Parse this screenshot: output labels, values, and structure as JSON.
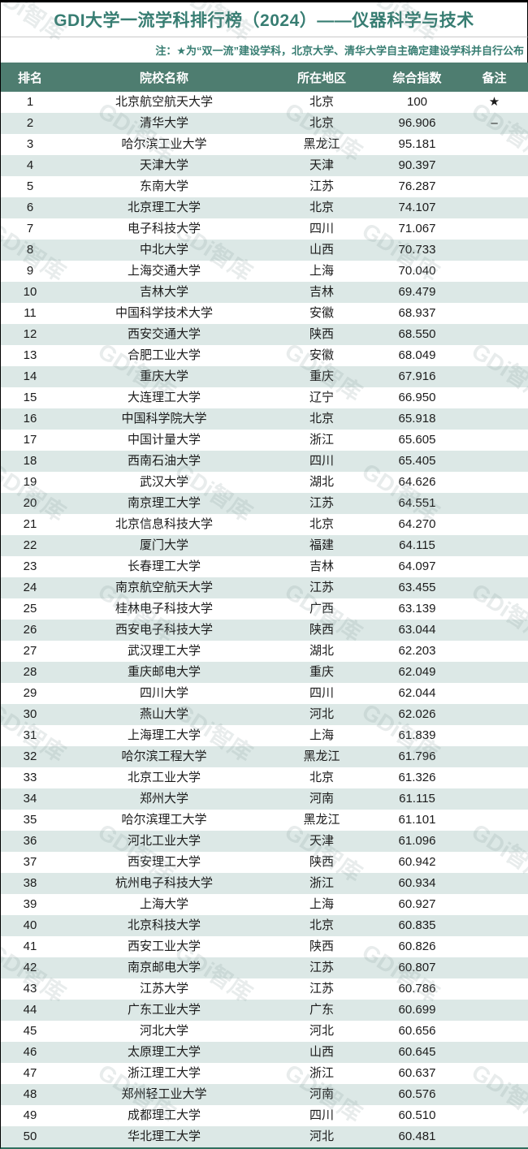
{
  "header": {
    "title": "GDI大学一流学科排行榜（2024）——仪器科学与技术",
    "note": "注：★为“双一流”建设学科，北京大学、清华大学自主确定建设学科并自行公布"
  },
  "watermark": {
    "text": "GDi智库"
  },
  "colors": {
    "accent_teal": "#377d72",
    "header_bg": "#4e7d70",
    "header_text": "#ffffff",
    "stripe": "#dce8e6",
    "bottom_border": "#30705f"
  },
  "table": {
    "columns": [
      "排名",
      "院校名称",
      "所在地区",
      "综合指数",
      "备注"
    ],
    "rows": [
      {
        "rank": "1",
        "name": "北京航空航天大学",
        "region": "北京",
        "index": "100",
        "note": "★"
      },
      {
        "rank": "2",
        "name": "清华大学",
        "region": "北京",
        "index": "96.906",
        "note": "–"
      },
      {
        "rank": "3",
        "name": "哈尔滨工业大学",
        "region": "黑龙江",
        "index": "95.181",
        "note": ""
      },
      {
        "rank": "4",
        "name": "天津大学",
        "region": "天津",
        "index": "90.397",
        "note": ""
      },
      {
        "rank": "5",
        "name": "东南大学",
        "region": "江苏",
        "index": "76.287",
        "note": ""
      },
      {
        "rank": "6",
        "name": "北京理工大学",
        "region": "北京",
        "index": "74.107",
        "note": ""
      },
      {
        "rank": "7",
        "name": "电子科技大学",
        "region": "四川",
        "index": "71.067",
        "note": ""
      },
      {
        "rank": "8",
        "name": "中北大学",
        "region": "山西",
        "index": "70.733",
        "note": ""
      },
      {
        "rank": "9",
        "name": "上海交通大学",
        "region": "上海",
        "index": "70.040",
        "note": ""
      },
      {
        "rank": "10",
        "name": "吉林大学",
        "region": "吉林",
        "index": "69.479",
        "note": ""
      },
      {
        "rank": "11",
        "name": "中国科学技术大学",
        "region": "安徽",
        "index": "68.937",
        "note": ""
      },
      {
        "rank": "12",
        "name": "西安交通大学",
        "region": "陕西",
        "index": "68.550",
        "note": ""
      },
      {
        "rank": "13",
        "name": "合肥工业大学",
        "region": "安徽",
        "index": "68.049",
        "note": ""
      },
      {
        "rank": "14",
        "name": "重庆大学",
        "region": "重庆",
        "index": "67.916",
        "note": ""
      },
      {
        "rank": "15",
        "name": "大连理工大学",
        "region": "辽宁",
        "index": "66.950",
        "note": ""
      },
      {
        "rank": "16",
        "name": "中国科学院大学",
        "region": "北京",
        "index": "65.918",
        "note": ""
      },
      {
        "rank": "17",
        "name": "中国计量大学",
        "region": "浙江",
        "index": "65.605",
        "note": ""
      },
      {
        "rank": "18",
        "name": "西南石油大学",
        "region": "四川",
        "index": "65.405",
        "note": ""
      },
      {
        "rank": "19",
        "name": "武汉大学",
        "region": "湖北",
        "index": "64.626",
        "note": ""
      },
      {
        "rank": "20",
        "name": "南京理工大学",
        "region": "江苏",
        "index": "64.551",
        "note": ""
      },
      {
        "rank": "21",
        "name": "北京信息科技大学",
        "region": "北京",
        "index": "64.270",
        "note": ""
      },
      {
        "rank": "22",
        "name": "厦门大学",
        "region": "福建",
        "index": "64.115",
        "note": ""
      },
      {
        "rank": "23",
        "name": "长春理工大学",
        "region": "吉林",
        "index": "64.097",
        "note": ""
      },
      {
        "rank": "24",
        "name": "南京航空航天大学",
        "region": "江苏",
        "index": "63.455",
        "note": ""
      },
      {
        "rank": "25",
        "name": "桂林电子科技大学",
        "region": "广西",
        "index": "63.139",
        "note": ""
      },
      {
        "rank": "26",
        "name": "西安电子科技大学",
        "region": "陕西",
        "index": "63.044",
        "note": ""
      },
      {
        "rank": "27",
        "name": "武汉理工大学",
        "region": "湖北",
        "index": "62.203",
        "note": ""
      },
      {
        "rank": "28",
        "name": "重庆邮电大学",
        "region": "重庆",
        "index": "62.049",
        "note": ""
      },
      {
        "rank": "29",
        "name": "四川大学",
        "region": "四川",
        "index": "62.044",
        "note": ""
      },
      {
        "rank": "30",
        "name": "燕山大学",
        "region": "河北",
        "index": "62.026",
        "note": ""
      },
      {
        "rank": "31",
        "name": "上海理工大学",
        "region": "上海",
        "index": "61.839",
        "note": ""
      },
      {
        "rank": "32",
        "name": "哈尔滨工程大学",
        "region": "黑龙江",
        "index": "61.796",
        "note": ""
      },
      {
        "rank": "33",
        "name": "北京工业大学",
        "region": "北京",
        "index": "61.326",
        "note": ""
      },
      {
        "rank": "34",
        "name": "郑州大学",
        "region": "河南",
        "index": "61.115",
        "note": ""
      },
      {
        "rank": "35",
        "name": "哈尔滨理工大学",
        "region": "黑龙江",
        "index": "61.101",
        "note": ""
      },
      {
        "rank": "36",
        "name": "河北工业大学",
        "region": "天津",
        "index": "61.096",
        "note": ""
      },
      {
        "rank": "37",
        "name": "西安理工大学",
        "region": "陕西",
        "index": "60.942",
        "note": ""
      },
      {
        "rank": "38",
        "name": "杭州电子科技大学",
        "region": "浙江",
        "index": "60.934",
        "note": ""
      },
      {
        "rank": "39",
        "name": "上海大学",
        "region": "上海",
        "index": "60.927",
        "note": ""
      },
      {
        "rank": "40",
        "name": "北京科技大学",
        "region": "北京",
        "index": "60.835",
        "note": ""
      },
      {
        "rank": "41",
        "name": "西安工业大学",
        "region": "陕西",
        "index": "60.826",
        "note": ""
      },
      {
        "rank": "42",
        "name": "南京邮电大学",
        "region": "江苏",
        "index": "60.807",
        "note": ""
      },
      {
        "rank": "43",
        "name": "江苏大学",
        "region": "江苏",
        "index": "60.786",
        "note": ""
      },
      {
        "rank": "44",
        "name": "广东工业大学",
        "region": "广东",
        "index": "60.699",
        "note": ""
      },
      {
        "rank": "45",
        "name": "河北大学",
        "region": "河北",
        "index": "60.656",
        "note": ""
      },
      {
        "rank": "46",
        "name": "太原理工大学",
        "region": "山西",
        "index": "60.645",
        "note": ""
      },
      {
        "rank": "47",
        "name": "浙江理工大学",
        "region": "浙江",
        "index": "60.637",
        "note": ""
      },
      {
        "rank": "48",
        "name": "郑州轻工业大学",
        "region": "河南",
        "index": "60.576",
        "note": ""
      },
      {
        "rank": "49",
        "name": "成都理工大学",
        "region": "四川",
        "index": "60.510",
        "note": ""
      },
      {
        "rank": "50",
        "name": "华北理工大学",
        "region": "河北",
        "index": "60.481",
        "note": ""
      }
    ]
  }
}
